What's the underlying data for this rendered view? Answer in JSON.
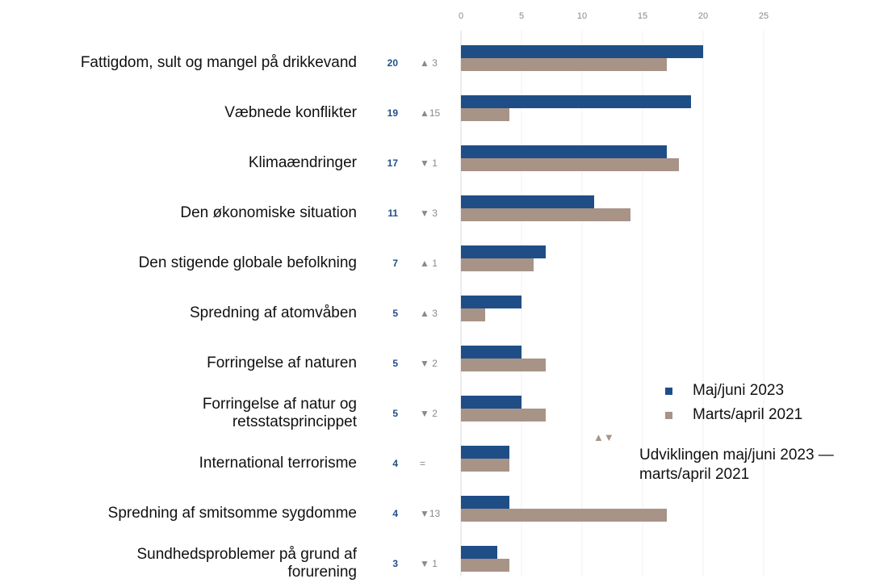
{
  "chart_data": {
    "type": "bar",
    "orientation": "horizontal",
    "categories": [
      "Fattigdom, sult og mangel på drikkevand",
      "Væbnede konflikter",
      "Klimaændringer",
      "Den økonomiske situation",
      "Den stigende globale befolkning",
      "Spredning af atomvåben",
      "Forringelse af naturen",
      "Forringelse af natur og\nretsstatsprincippet",
      "International terrorisme",
      "Spredning af smitsomme sygdomme",
      "Sundhedsproblemer på grund af\nforurening"
    ],
    "series": [
      {
        "name": "Maj/juni 2023",
        "color": "#1f4e87",
        "values": [
          20,
          19,
          17,
          11,
          7,
          5,
          5,
          5,
          4,
          4,
          3
        ]
      },
      {
        "name": "Marts/april 2021",
        "color": "#a89387",
        "values": [
          17,
          4,
          18,
          14,
          6,
          2,
          7,
          7,
          4,
          17,
          4
        ]
      }
    ],
    "changes": [
      "▲ 3",
      "▲15",
      "▼ 1",
      "▼ 3",
      "▲ 1",
      "▲ 3",
      "▼ 2",
      "▼ 2",
      "=",
      "▼13",
      "▼ 1"
    ],
    "change_legend_symbol": "▲▼",
    "change_legend": "Udviklingen maj/juni 2023 —\nmarts/april 2021",
    "xlim": [
      0,
      25
    ],
    "xticks": [
      0,
      5,
      10,
      15,
      20,
      25
    ],
    "grid": true
  }
}
